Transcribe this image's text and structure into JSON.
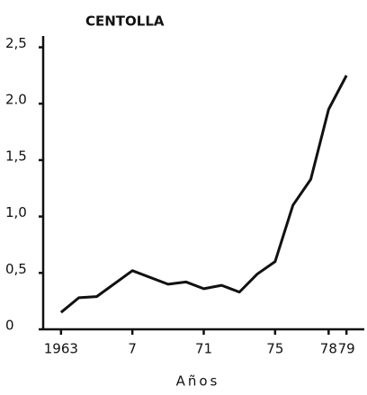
{
  "chart_data": {
    "type": "line",
    "title": "CENTOLLA",
    "x_label": "Años",
    "x": [
      1963,
      1964,
      1965,
      1967,
      1969,
      1970,
      1971,
      1972,
      1973,
      1974,
      1975,
      1976,
      1977,
      1978,
      1979
    ],
    "series": [
      {
        "name": "CENTOLLA",
        "color": "#111111",
        "values": [
          0.15,
          0.28,
          0.29,
          0.52,
          0.4,
          0.42,
          0.36,
          0.39,
          0.33,
          0.49,
          0.6,
          1.1,
          1.33,
          1.95,
          2.25
        ]
      }
    ],
    "xlim": [
      1962,
      1980
    ],
    "xticks": [
      {
        "value": 1963,
        "label": "1963"
      },
      {
        "value": 1967,
        "label": "7"
      },
      {
        "value": 1971,
        "label": "71"
      },
      {
        "value": 1975,
        "label": "75"
      },
      {
        "value": 1978,
        "label": "78"
      },
      {
        "value": 1979,
        "label": "79"
      }
    ],
    "ylim": [
      0,
      2.6
    ],
    "yticks": [
      0,
      {
        "value": 0.5,
        "label": "0,5"
      },
      {
        "value": 1,
        "label": "1,0"
      },
      {
        "value": 1.5,
        "label": "1,5"
      },
      {
        "value": 2,
        "label": "2.0"
      },
      {
        "value": 2.5,
        "label": "2,5"
      }
    ],
    "grid": false
  }
}
